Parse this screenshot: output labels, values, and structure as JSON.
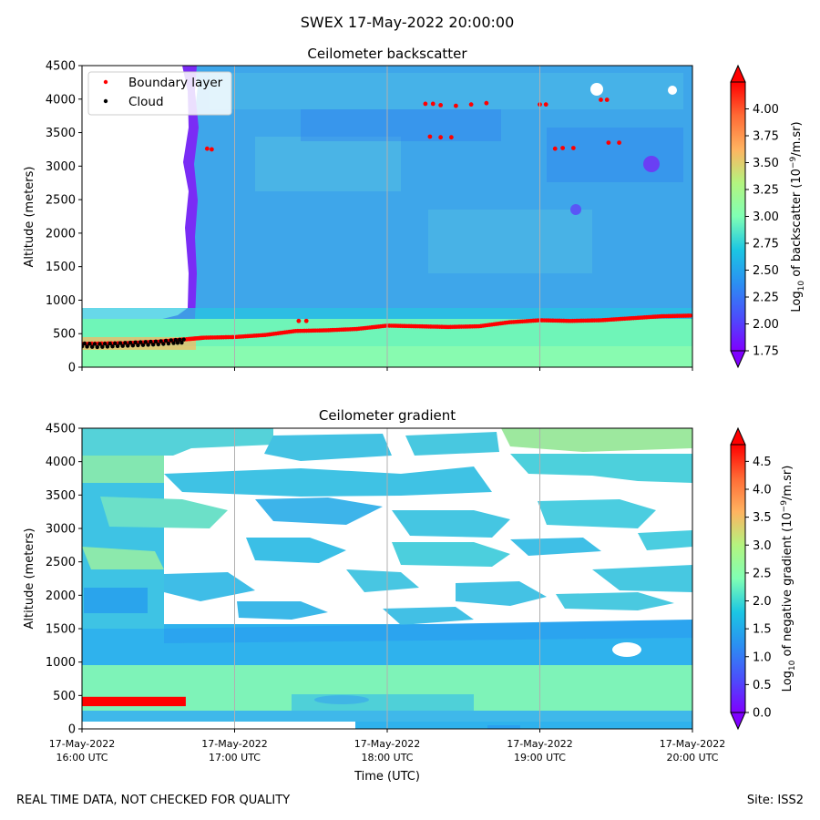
{
  "suptitle": "SWEX 17-May-2022 20:00:00",
  "footer_left": "REAL TIME DATA, NOT CHECKED FOR QUALITY",
  "footer_right": "Site: ISS2",
  "x_axis": {
    "label": "Time (UTC)",
    "ticks": [
      {
        "value": 16,
        "line1": "17-May-2022",
        "line2": "16:00 UTC"
      },
      {
        "value": 17,
        "line1": "17-May-2022",
        "line2": "17:00 UTC"
      },
      {
        "value": 18,
        "line1": "17-May-2022",
        "line2": "18:00 UTC"
      },
      {
        "value": 19,
        "line1": "17-May-2022",
        "line2": "19:00 UTC"
      },
      {
        "value": 20,
        "line1": "17-May-2022",
        "line2": "20:00 UTC"
      }
    ]
  },
  "chart_data": [
    {
      "type": "heatmap",
      "title": "Ceilometer backscatter",
      "xlabel": "",
      "ylabel": "Altitude (meters)",
      "xlim": [
        16,
        20
      ],
      "ylim": [
        0,
        4500
      ],
      "yticks": [
        0,
        500,
        1000,
        1500,
        2000,
        2500,
        3000,
        3500,
        4000,
        4500
      ],
      "colorbar": {
        "label_prefix": "Log",
        "label_sub": "10",
        "label_mid": " of backscatter (10",
        "label_sup": "−9",
        "label_suffix": "/m.sr)",
        "range": [
          1.75,
          4.25
        ],
        "ticks": [
          "1.75",
          "2.00",
          "2.25",
          "2.50",
          "2.75",
          "3.00",
          "3.25",
          "3.50",
          "3.75",
          "4.00"
        ],
        "extend": "both"
      },
      "legend": {
        "position": "top-left",
        "entries": [
          {
            "label": "Boundary layer",
            "color": "#ff0000"
          },
          {
            "label": "Cloud",
            "color": "#000000"
          }
        ]
      },
      "boundary_layer": [
        [
          16.0,
          350
        ],
        [
          16.3,
          360
        ],
        [
          16.5,
          380
        ],
        [
          16.7,
          420
        ],
        [
          16.8,
          440
        ],
        [
          17.0,
          450
        ],
        [
          17.2,
          480
        ],
        [
          17.4,
          540
        ],
        [
          17.6,
          550
        ],
        [
          17.8,
          570
        ],
        [
          18.0,
          620
        ],
        [
          18.2,
          610
        ],
        [
          18.4,
          600
        ],
        [
          18.6,
          610
        ],
        [
          18.8,
          670
        ],
        [
          19.0,
          700
        ],
        [
          19.2,
          690
        ],
        [
          19.4,
          700
        ],
        [
          19.6,
          730
        ],
        [
          19.8,
          760
        ],
        [
          20.0,
          770
        ]
      ],
      "boundary_layer_aloft": [
        [
          17.42,
          690
        ],
        [
          17.47,
          690
        ],
        [
          18.25,
          3930
        ],
        [
          18.3,
          3930
        ],
        [
          18.35,
          3910
        ],
        [
          18.45,
          3900
        ],
        [
          18.55,
          3920
        ],
        [
          18.65,
          3940
        ],
        [
          18.28,
          3440
        ],
        [
          18.35,
          3430
        ],
        [
          18.42,
          3430
        ],
        [
          19.0,
          3920
        ],
        [
          19.04,
          3920
        ],
        [
          19.1,
          3260
        ],
        [
          19.15,
          3270
        ],
        [
          19.22,
          3270
        ],
        [
          19.4,
          3990
        ],
        [
          19.44,
          3990
        ],
        [
          19.45,
          3350
        ],
        [
          19.52,
          3350
        ],
        [
          16.82,
          3260
        ],
        [
          16.85,
          3250
        ]
      ],
      "cloud": [
        [
          16.0,
          330
        ],
        [
          16.1,
          320
        ],
        [
          16.2,
          330
        ],
        [
          16.3,
          340
        ],
        [
          16.4,
          350
        ],
        [
          16.5,
          360
        ],
        [
          16.6,
          380
        ],
        [
          16.68,
          390
        ]
      ]
    },
    {
      "type": "heatmap",
      "title": "Ceilometer gradient",
      "xlabel": "Time (UTC)",
      "ylabel": "Altitude (meters)",
      "xlim": [
        16,
        20
      ],
      "ylim": [
        0,
        4500
      ],
      "yticks": [
        0,
        500,
        1000,
        1500,
        2000,
        2500,
        3000,
        3500,
        4000,
        4500
      ],
      "colorbar": {
        "label_prefix": "Log",
        "label_sub": "10",
        "label_mid": " of negative gradient (10",
        "label_sup": "−9",
        "label_suffix": "/m.sr)",
        "range": [
          0.0,
          4.8
        ],
        "ticks": [
          "0.0",
          "0.5",
          "1.0",
          "1.5",
          "2.0",
          "2.5",
          "3.0",
          "3.5",
          "4.0",
          "4.5"
        ],
        "extend": "both"
      },
      "red_band": {
        "x": [
          16.0,
          16.68
        ],
        "y": [
          340,
          480
        ]
      }
    }
  ]
}
